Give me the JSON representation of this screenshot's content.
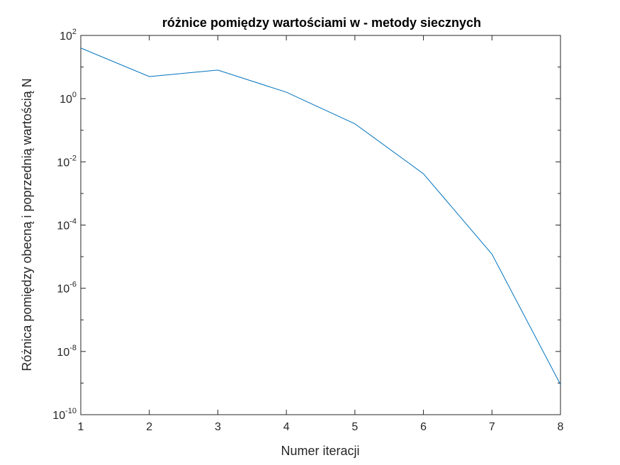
{
  "chart_data": {
    "type": "line",
    "title": "różnice pomiędzy wartościami w - metody siecznych",
    "xlabel": "Numer iteracji",
    "ylabel": "Różnica pomiędzy obecną i poprzednią wartością N",
    "xscale": "linear",
    "yscale": "log",
    "xlim": [
      1,
      8
    ],
    "ylim": [
      1e-10,
      100
    ],
    "grid": false,
    "x_ticks": [
      "1",
      "2",
      "3",
      "4",
      "5",
      "6",
      "7",
      "8"
    ],
    "y_ticks": [
      {
        "base": "10",
        "exp": "2"
      },
      {
        "base": "10",
        "exp": "0"
      },
      {
        "base": "10",
        "exp": "-2"
      },
      {
        "base": "10",
        "exp": "-4"
      },
      {
        "base": "10",
        "exp": "-6"
      },
      {
        "base": "10",
        "exp": "-8"
      },
      {
        "base": "10",
        "exp": "-10"
      }
    ],
    "series": [
      {
        "color": "#0072BD",
        "x": [
          1,
          2,
          3,
          4,
          5,
          6,
          7,
          8
        ],
        "y": [
          40,
          5,
          8,
          1.6,
          0.16,
          0.0042,
          1.2e-05,
          9e-10
        ]
      }
    ]
  }
}
